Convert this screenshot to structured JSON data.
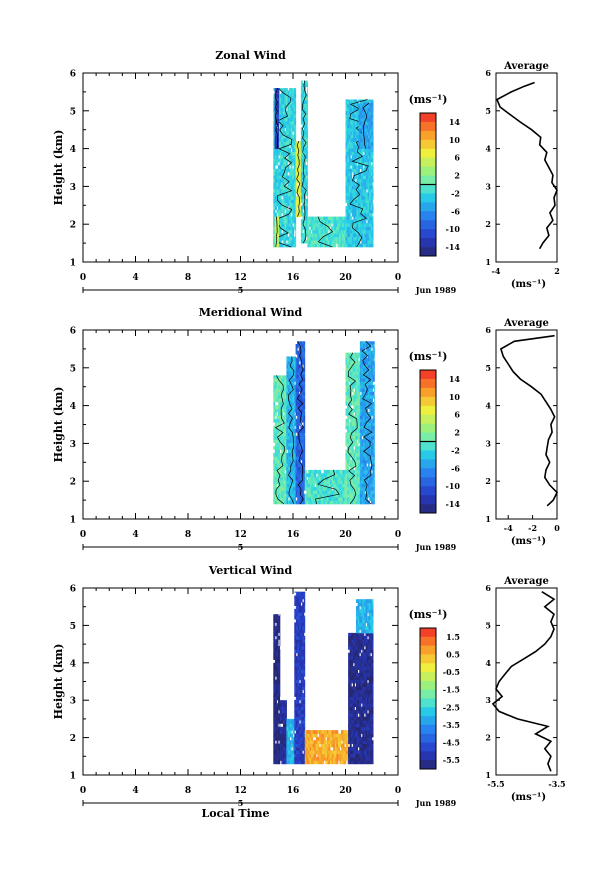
{
  "chart_data": [
    {
      "type": "heatmap",
      "title": "Zonal Wind",
      "ylabel": "Height (km)",
      "ylim": [
        1,
        6
      ],
      "xlim": [
        0,
        24
      ],
      "xticks": [
        "0",
        "4",
        "8",
        "12",
        "16",
        "20",
        "0"
      ],
      "yticks": [
        "1",
        "2",
        "3",
        "4",
        "5",
        "6"
      ],
      "date_marker": "5",
      "date_label": "Jun 1989",
      "colorbar": {
        "unit": "(ms⁻¹)",
        "ticks": [
          "14",
          "10",
          "6",
          "2",
          "-2",
          "-6",
          "-10",
          "-14"
        ],
        "range": [
          -16,
          16
        ],
        "zero_line": 0
      },
      "data_blocks": [
        {
          "t_start": 14.5,
          "t_end": 16.2,
          "z_start": 1.4,
          "z_end": 5.6,
          "value": -2
        },
        {
          "t_start": 16.2,
          "t_end": 16.6,
          "z_start": 2.2,
          "z_end": 4.2,
          "value": 6
        },
        {
          "t_start": 16.6,
          "t_end": 17.1,
          "z_start": 1.5,
          "z_end": 5.8,
          "value": -2
        },
        {
          "t_start": 17.1,
          "t_end": 20.0,
          "z_start": 1.4,
          "z_end": 2.2,
          "value": -1
        },
        {
          "t_start": 20.0,
          "t_end": 22.1,
          "z_start": 1.4,
          "z_end": 5.3,
          "value": -3
        },
        {
          "t_start": 21.0,
          "t_end": 22.1,
          "z_start": 4.0,
          "z_end": 5.2,
          "value": -5
        },
        {
          "t_start": 14.6,
          "t_end": 14.9,
          "z_start": 4.0,
          "z_end": 5.6,
          "value": -12
        },
        {
          "t_start": 14.6,
          "t_end": 14.9,
          "z_start": 1.4,
          "z_end": 2.2,
          "value": 5
        }
      ],
      "profile": {
        "title": "Average",
        "unit": "(ms⁻¹)",
        "xlim": [
          -4,
          2
        ],
        "xticks": [
          "-4",
          "2"
        ],
        "ylim": [
          1,
          6
        ],
        "yticks": [
          "1",
          "2",
          "3",
          "4",
          "5",
          "6"
        ],
        "z": [
          1.35,
          1.5,
          1.7,
          1.9,
          2.1,
          2.3,
          2.5,
          2.7,
          2.9,
          3.1,
          3.3,
          3.5,
          3.7,
          3.9,
          4.1,
          4.3,
          4.5,
          4.7,
          4.9,
          5.1,
          5.3,
          5.5,
          5.65,
          5.75
        ],
        "u": [
          0.3,
          0.6,
          1.2,
          1.0,
          1.6,
          1.3,
          1.8,
          1.7,
          2.0,
          1.5,
          1.6,
          1.2,
          0.8,
          1.0,
          0.3,
          0.4,
          -0.5,
          -1.6,
          -2.6,
          -3.6,
          -3.9,
          -2.5,
          -1.2,
          -0.2
        ]
      }
    },
    {
      "type": "heatmap",
      "title": "Meridional Wind",
      "ylabel": "Height (km)",
      "ylim": [
        1,
        6
      ],
      "xlim": [
        0,
        24
      ],
      "xticks": [
        "0",
        "4",
        "8",
        "12",
        "16",
        "20",
        "0"
      ],
      "yticks": [
        "1",
        "2",
        "3",
        "4",
        "5",
        "6"
      ],
      "date_marker": "5",
      "date_label": "Jun 1989",
      "colorbar": {
        "unit": "(ms⁻¹)",
        "ticks": [
          "14",
          "10",
          "6",
          "2",
          "-2",
          "-6",
          "-10",
          "-14"
        ],
        "range": [
          -16,
          16
        ],
        "zero_line": 0
      },
      "data_blocks": [
        {
          "t_start": 14.5,
          "t_end": 15.5,
          "z_start": 1.4,
          "z_end": 4.8,
          "value": 0
        },
        {
          "t_start": 15.5,
          "t_end": 16.2,
          "z_start": 1.4,
          "z_end": 5.3,
          "value": -4
        },
        {
          "t_start": 16.2,
          "t_end": 16.9,
          "z_start": 1.4,
          "z_end": 5.7,
          "value": -9
        },
        {
          "t_start": 16.9,
          "t_end": 20.0,
          "z_start": 1.4,
          "z_end": 2.3,
          "value": -1
        },
        {
          "t_start": 20.0,
          "t_end": 21.1,
          "z_start": 1.4,
          "z_end": 5.4,
          "value": 0
        },
        {
          "t_start": 21.1,
          "t_end": 22.2,
          "z_start": 1.4,
          "z_end": 5.7,
          "value": -5
        }
      ],
      "profile": {
        "title": "Average",
        "unit": "(ms⁻¹)",
        "xlim": [
          -5,
          0
        ],
        "xticks": [
          "-4",
          "-2",
          "0"
        ],
        "ylim": [
          1,
          6
        ],
        "yticks": [
          "1",
          "2",
          "3",
          "4",
          "5",
          "6"
        ],
        "z": [
          1.35,
          1.5,
          1.7,
          1.9,
          2.1,
          2.3,
          2.5,
          2.7,
          2.9,
          3.1,
          3.3,
          3.5,
          3.7,
          3.9,
          4.1,
          4.3,
          4.5,
          4.7,
          4.9,
          5.1,
          5.3,
          5.5,
          5.7,
          5.85
        ],
        "u": [
          -0.8,
          -0.3,
          0.0,
          -0.6,
          -1.0,
          -0.9,
          -0.6,
          -0.9,
          -0.8,
          -0.7,
          -0.4,
          -0.5,
          -0.2,
          -0.5,
          -0.9,
          -1.3,
          -2.1,
          -3.0,
          -3.6,
          -4.0,
          -4.4,
          -4.6,
          -3.5,
          -0.2
        ]
      }
    },
    {
      "type": "heatmap",
      "title": "Vertical Wind",
      "ylabel": "Height (km)",
      "xlabel": "Local Time",
      "ylim": [
        1,
        6
      ],
      "xlim": [
        0,
        24
      ],
      "xticks": [
        "0",
        "4",
        "8",
        "12",
        "16",
        "20",
        "0"
      ],
      "yticks": [
        "1",
        "2",
        "3",
        "4",
        "5",
        "6"
      ],
      "date_marker": "5",
      "date_label": "Jun 1989",
      "colorbar": {
        "unit": "(ms⁻¹)",
        "ticks": [
          "1.5",
          "0.5",
          "-0.5",
          "-1.5",
          "-2.5",
          "-3.5",
          "-4.5",
          "-5.5"
        ],
        "range": [
          -6,
          2
        ],
        "zero_line": null
      },
      "data_blocks": [
        {
          "t_start": 14.5,
          "t_end": 15.0,
          "z_start": 1.3,
          "z_end": 5.3,
          "value": -5.8
        },
        {
          "t_start": 15.0,
          "t_end": 15.5,
          "z_start": 1.3,
          "z_end": 3.0,
          "value": -5.5
        },
        {
          "t_start": 15.5,
          "t_end": 16.1,
          "z_start": 1.3,
          "z_end": 2.5,
          "value": -3.0
        },
        {
          "t_start": 16.1,
          "t_end": 16.9,
          "z_start": 1.3,
          "z_end": 5.9,
          "value": -5.0
        },
        {
          "t_start": 16.9,
          "t_end": 20.2,
          "z_start": 1.3,
          "z_end": 2.2,
          "value": 0.6
        },
        {
          "t_start": 20.2,
          "t_end": 22.1,
          "z_start": 1.3,
          "z_end": 4.8,
          "value": -5.6
        },
        {
          "t_start": 20.8,
          "t_end": 22.1,
          "z_start": 4.8,
          "z_end": 5.7,
          "value": -3.0
        }
      ],
      "profile": {
        "title": "Average",
        "unit": "(ms⁻¹)",
        "xlim": [
          -5.5,
          -3.5
        ],
        "xticks": [
          "-5.5",
          "-3.5"
        ],
        "ylim": [
          1,
          6
        ],
        "yticks": [
          "1",
          "2",
          "3",
          "4",
          "5",
          "6"
        ],
        "z": [
          1.1,
          1.3,
          1.5,
          1.7,
          1.9,
          2.1,
          2.3,
          2.5,
          2.7,
          2.9,
          3.1,
          3.3,
          3.5,
          3.7,
          3.9,
          4.1,
          4.3,
          4.5,
          4.7,
          4.9,
          5.1,
          5.3,
          5.5,
          5.7,
          5.9
        ],
        "u": [
          -3.7,
          -3.8,
          -3.7,
          -3.9,
          -3.7,
          -4.2,
          -3.8,
          -4.8,
          -5.4,
          -5.6,
          -5.3,
          -5.5,
          -5.4,
          -5.2,
          -5.0,
          -4.6,
          -4.2,
          -3.9,
          -3.7,
          -3.6,
          -3.7,
          -3.6,
          -3.9,
          -3.6,
          -4.0
        ]
      }
    }
  ]
}
